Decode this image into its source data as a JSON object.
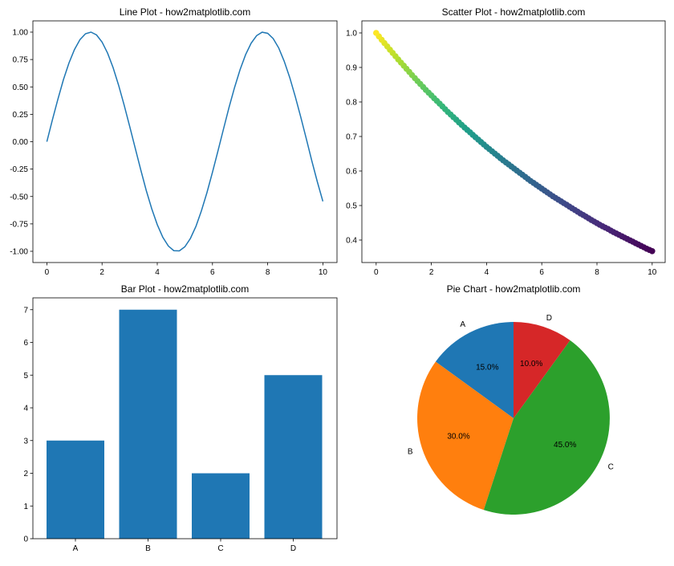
{
  "chart_data": [
    {
      "type": "line",
      "title": "Line Plot - how2matplotlib.com",
      "xlim": [
        -0.5,
        10.5
      ],
      "ylim": [
        -1.1,
        1.1
      ],
      "xticks": [
        0,
        2,
        4,
        6,
        8,
        10
      ],
      "yticks": [
        "1.00",
        "0.75",
        "0.50",
        "0.25",
        "0.00",
        "-0.25",
        "-0.50",
        "-0.75",
        "-1.00"
      ],
      "color": "#1f77b4",
      "x": [
        0,
        0.2,
        0.4,
        0.6,
        0.8,
        1.0,
        1.2,
        1.4,
        1.6,
        1.8,
        2.0,
        2.2,
        2.4,
        2.6,
        2.8,
        3.0,
        3.2,
        3.4,
        3.6,
        3.8,
        4.0,
        4.2,
        4.4,
        4.6,
        4.8,
        5.0,
        5.2,
        5.4,
        5.6,
        5.8,
        6.0,
        6.2,
        6.4,
        6.6,
        6.8,
        7.0,
        7.2,
        7.4,
        7.6,
        7.8,
        8.0,
        8.2,
        8.4,
        8.6,
        8.8,
        9.0,
        9.2,
        9.4,
        9.6,
        9.8,
        10.0
      ],
      "y": [
        0,
        0.199,
        0.389,
        0.565,
        0.717,
        0.841,
        0.932,
        0.985,
        1.0,
        0.974,
        0.909,
        0.808,
        0.675,
        0.516,
        0.335,
        0.141,
        -0.058,
        -0.256,
        -0.443,
        -0.612,
        -0.757,
        -0.872,
        -0.952,
        -0.994,
        -0.996,
        -0.959,
        -0.883,
        -0.773,
        -0.631,
        -0.465,
        -0.279,
        -0.083,
        0.117,
        0.312,
        0.494,
        0.657,
        0.794,
        0.899,
        0.968,
        0.999,
        0.989,
        0.941,
        0.855,
        0.734,
        0.585,
        0.412,
        0.223,
        0.025,
        -0.174,
        -0.366,
        -0.544
      ]
    },
    {
      "type": "scatter",
      "title": "Scatter Plot - how2matplotlib.com",
      "xticks": [
        0,
        2,
        4,
        6,
        8,
        10
      ],
      "yticks": [
        "1.0",
        "0.9",
        "0.8",
        "0.7",
        "0.6",
        "0.5",
        "0.4"
      ],
      "colormap": "viridis",
      "x": [
        0,
        0.2,
        0.4,
        0.6,
        0.8,
        1.0,
        1.2,
        1.4,
        1.6,
        1.8,
        2.0,
        2.2,
        2.4,
        2.6,
        2.8,
        3.0,
        3.2,
        3.4,
        3.6,
        3.8,
        4.0,
        4.2,
        4.4,
        4.6,
        4.8,
        5.0,
        5.2,
        5.4,
        5.6,
        5.8,
        6.0,
        6.2,
        6.4,
        6.6,
        6.8,
        7.0,
        7.2,
        7.4,
        7.6,
        7.8,
        8.0,
        8.2,
        8.4,
        8.6,
        8.8,
        9.0,
        9.2,
        9.4,
        9.6,
        9.8,
        10.0
      ],
      "y": [
        1,
        0.98,
        0.961,
        0.942,
        0.923,
        0.905,
        0.887,
        0.869,
        0.852,
        0.835,
        0.819,
        0.803,
        0.787,
        0.771,
        0.756,
        0.741,
        0.726,
        0.712,
        0.698,
        0.684,
        0.67,
        0.657,
        0.644,
        0.631,
        0.619,
        0.607,
        0.595,
        0.583,
        0.571,
        0.56,
        0.549,
        0.538,
        0.527,
        0.517,
        0.507,
        0.497,
        0.487,
        0.477,
        0.468,
        0.458,
        0.449,
        0.44,
        0.432,
        0.423,
        0.415,
        0.407,
        0.399,
        0.391,
        0.383,
        0.375,
        0.368
      ]
    },
    {
      "type": "bar",
      "title": "Bar Plot - how2matplotlib.com",
      "categories": [
        "A",
        "B",
        "C",
        "D"
      ],
      "values": [
        3,
        7,
        2,
        5
      ],
      "yticks": [
        "0",
        "1",
        "2",
        "3",
        "4",
        "5",
        "6",
        "7"
      ],
      "ylim": [
        0,
        7.35
      ],
      "color": "#1f77b4"
    },
    {
      "type": "pie",
      "title": "Pie Chart - how2matplotlib.com",
      "labels": [
        "A",
        "B",
        "C",
        "D"
      ],
      "values": [
        15,
        30,
        45,
        10
      ],
      "pct_labels": [
        "15.0%",
        "30.0%",
        "45.0%",
        "10.0%"
      ],
      "colors": [
        "#1f77b4",
        "#ff7f0e",
        "#2ca02c",
        "#d62728"
      ],
      "start_angle": 90
    }
  ]
}
